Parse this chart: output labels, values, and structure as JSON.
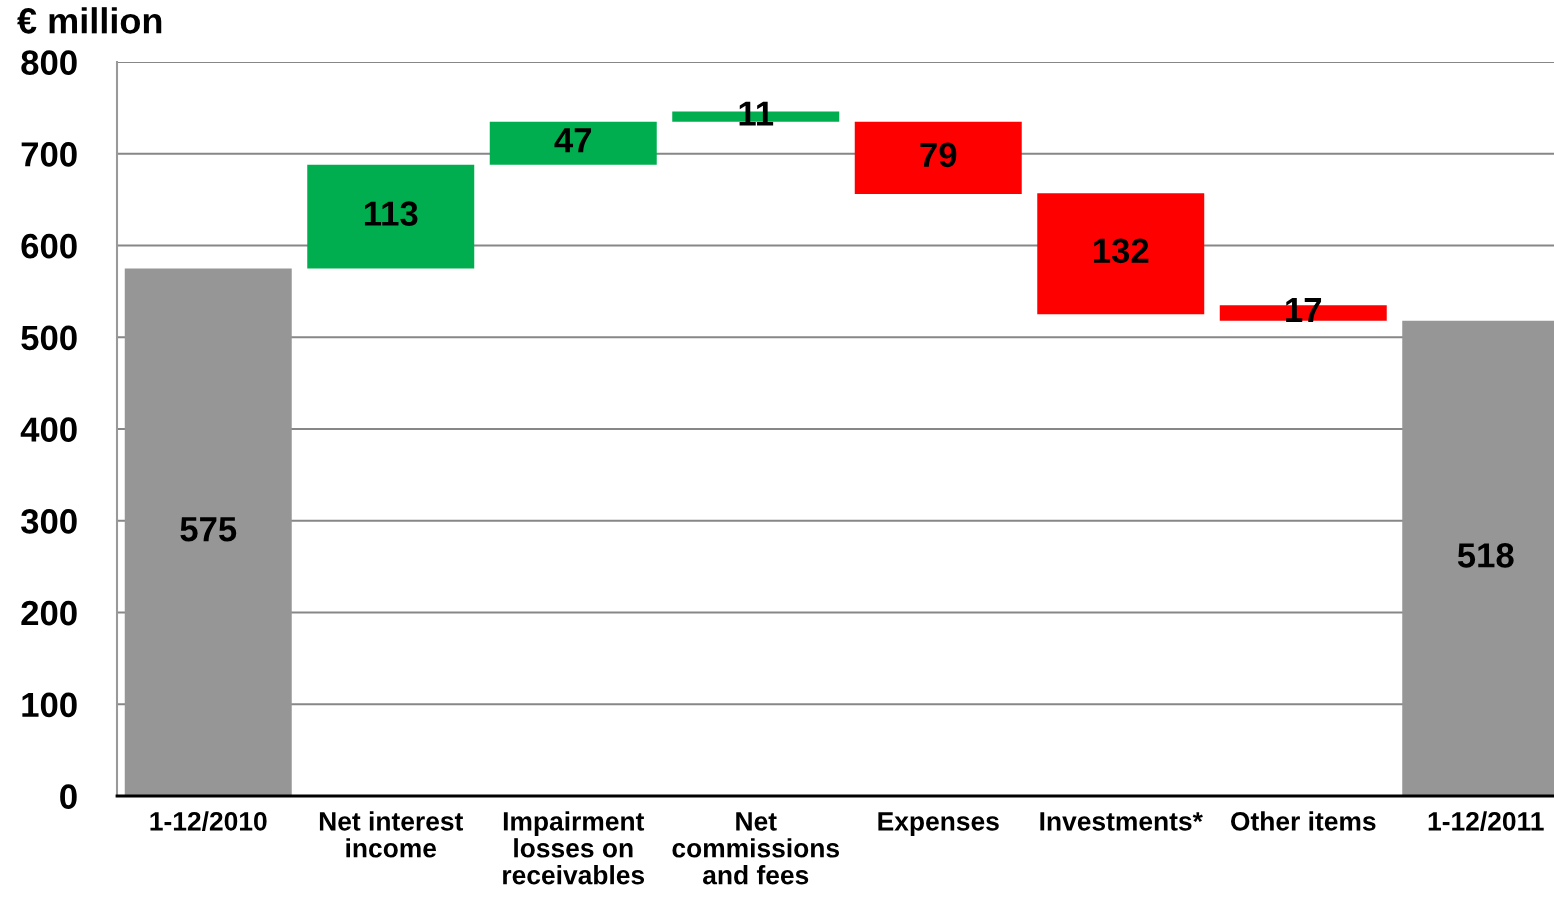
{
  "chart_data": {
    "type": "bar",
    "ylabel": "€ million",
    "categories": [
      "1-12/2010",
      "Net interest\nincome",
      "Impairment\nlosses on\nreceivables",
      "Net\ncommissions\nand fees",
      "Expenses",
      "Investments*",
      "Other items",
      "1-12/2011"
    ],
    "values": [
      575,
      113,
      47,
      11,
      79,
      132,
      17,
      518
    ],
    "base": [
      0,
      575,
      688,
      735,
      656,
      525,
      518,
      0
    ],
    "colors": [
      "#969696",
      "#00ae4f",
      "#00ae4f",
      "#00ae4f",
      "#ff0000",
      "#ff0000",
      "#ff0000",
      "#969696"
    ],
    "ylim": [
      0,
      800
    ],
    "yticks": [
      0,
      100,
      200,
      300,
      400,
      500,
      600,
      700,
      800
    ],
    "grid": "y",
    "data_labels": true
  }
}
